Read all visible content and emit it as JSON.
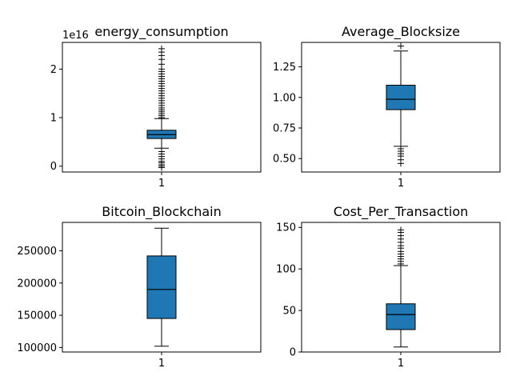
{
  "chart_data": [
    {
      "type": "box",
      "title": "energy_consumption",
      "offset_label": "1e16",
      "xticks": [
        "1"
      ],
      "yticks": [
        0,
        1,
        2
      ],
      "ylim": [
        -0.12,
        2.55
      ],
      "box": {
        "q1": 0.57,
        "median": 0.65,
        "q3": 0.74,
        "whisker_low": 0.37,
        "whisker_high": 0.98
      },
      "fliers_high": [
        1.0,
        1.04,
        1.08,
        1.12,
        1.16,
        1.2,
        1.25,
        1.3,
        1.35,
        1.4,
        1.45,
        1.5,
        1.55,
        1.6,
        1.65,
        1.7,
        1.75,
        1.8,
        1.85,
        1.9,
        1.95,
        2.0,
        2.1,
        2.2,
        2.28,
        2.35,
        2.42
      ],
      "fliers_low": [
        0.3,
        0.25,
        0.2,
        0.15,
        0.1,
        0.07,
        0.03,
        0.0,
        -0.03
      ]
    },
    {
      "type": "box",
      "title": "Average_Blocksize",
      "offset_label": "",
      "xticks": [
        "1"
      ],
      "yticks": [
        "0.50",
        "0.75",
        "1.00",
        "1.25"
      ],
      "ylim": [
        0.39,
        1.45
      ],
      "box": {
        "q1": 0.9,
        "median": 0.985,
        "q3": 1.1,
        "whisker_low": 0.6,
        "whisker_high": 1.38
      },
      "fliers_high": [
        1.42
      ],
      "fliers_low": [
        0.58,
        0.56,
        0.54,
        0.52,
        0.49,
        0.46
      ]
    },
    {
      "type": "box",
      "title": "Bitcoin_Blockchain",
      "offset_label": "",
      "xticks": [
        "1"
      ],
      "yticks": [
        "100000",
        "150000",
        "200000",
        "250000"
      ],
      "ylim": [
        93000,
        294000
      ],
      "box": {
        "q1": 145000,
        "median": 190000,
        "q3": 242000,
        "whisker_low": 102000,
        "whisker_high": 285000
      },
      "fliers_high": [],
      "fliers_low": []
    },
    {
      "type": "box",
      "title": "Cost_Per_Transaction",
      "offset_label": "",
      "xticks": [
        "1"
      ],
      "yticks": [
        "0",
        "50",
        "100",
        "150"
      ],
      "ylim": [
        0,
        156
      ],
      "box": {
        "q1": 27,
        "median": 45,
        "q3": 58,
        "whisker_low": 6,
        "whisker_high": 104
      },
      "fliers_high": [
        106,
        109,
        112,
        115,
        118,
        121,
        125,
        128,
        132,
        136,
        140,
        144,
        147
      ],
      "fliers_low": []
    }
  ]
}
